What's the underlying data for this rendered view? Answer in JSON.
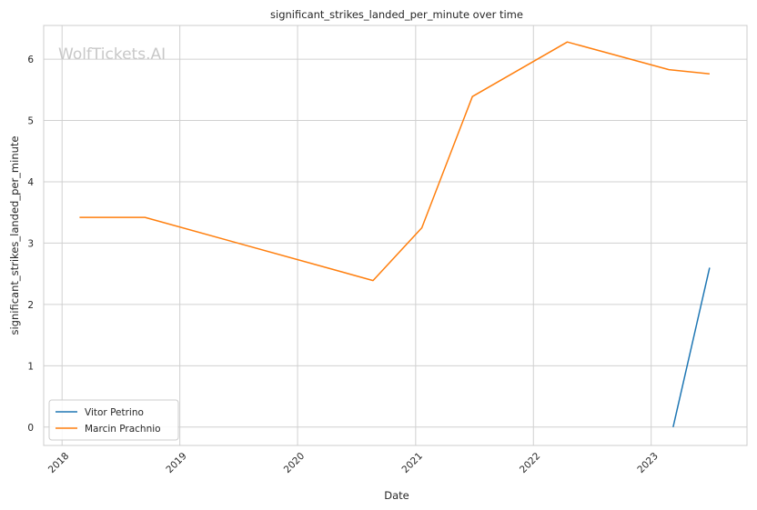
{
  "watermark": "WolfTickets.AI",
  "chart_data": {
    "type": "line",
    "title": "significant_strikes_landed_per_minute over time",
    "xlabel": "Date",
    "ylabel": "significant_strikes_landed_per_minute",
    "xlim": [
      "2017-11-05",
      "2023-10-25"
    ],
    "ylim": [
      -0.3,
      6.55
    ],
    "x_ticks": [
      "2018",
      "2019",
      "2020",
      "2021",
      "2022",
      "2023"
    ],
    "x_tick_dates": [
      "2018-01-01",
      "2019-01-01",
      "2020-01-01",
      "2021-01-01",
      "2022-01-01",
      "2023-01-01"
    ],
    "y_ticks": [
      0,
      1,
      2,
      3,
      4,
      5,
      6
    ],
    "grid": true,
    "legend_position": "lower-left",
    "series": [
      {
        "name": "Vitor Petrino",
        "color": "#1f77b4",
        "points": [
          {
            "date": "2023-03-10",
            "value": 0.0
          },
          {
            "date": "2023-07-01",
            "value": 2.6
          }
        ]
      },
      {
        "name": "Marcin Prachnio",
        "color": "#ff7f0e",
        "points": [
          {
            "date": "2018-02-24",
            "value": 3.42
          },
          {
            "date": "2018-09-15",
            "value": 3.42
          },
          {
            "date": "2020-08-22",
            "value": 2.39
          },
          {
            "date": "2021-01-20",
            "value": 3.25
          },
          {
            "date": "2021-06-26",
            "value": 5.39
          },
          {
            "date": "2022-04-16",
            "value": 6.28
          },
          {
            "date": "2023-02-25",
            "value": 5.83
          },
          {
            "date": "2023-07-01",
            "value": 5.76
          }
        ]
      }
    ]
  }
}
